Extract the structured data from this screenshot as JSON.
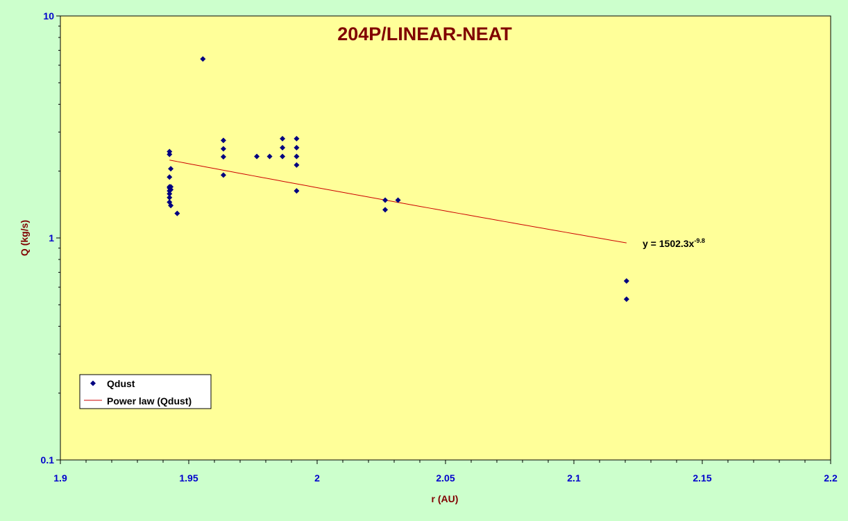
{
  "chart_data": {
    "type": "scatter",
    "title": "204P/LINEAR-NEAT",
    "xlabel": "r (AU)",
    "ylabel": "Q (kg/s)",
    "xlim": [
      1.9,
      2.2
    ],
    "ylim": [
      0.1,
      10
    ],
    "yscale": "log",
    "x_ticks": [
      "1.9",
      "1.95",
      "2",
      "2.05",
      "2.1",
      "2.15",
      "2.2"
    ],
    "y_ticks": [
      "0.1",
      "1",
      "10"
    ],
    "grid": false,
    "legend_position": "bottom-left",
    "colors": {
      "background": "#ccffcc",
      "plot_area": "#ffff99",
      "points": "#000080",
      "trendline": "#cc0000",
      "title": "#800000",
      "ticks": "#0000cc"
    },
    "series": [
      {
        "name": "Qdust",
        "marker": "diamond",
        "x": [
          1.9425,
          1.9425,
          1.9425,
          1.9425,
          1.9425,
          1.9425,
          1.9425,
          1.9425,
          1.9425,
          1.943,
          1.943,
          1.943,
          1.943,
          1.9455,
          1.9555,
          1.9635,
          1.9635,
          1.9635,
          1.9635,
          1.9765,
          1.9815,
          1.9865,
          1.9865,
          1.9865,
          1.992,
          1.992,
          1.992,
          1.992,
          1.992,
          2.0265,
          2.0265,
          2.0315,
          2.1205,
          2.1205
        ],
        "y": [
          2.45,
          2.38,
          1.88,
          1.7,
          1.68,
          1.63,
          1.58,
          1.52,
          1.45,
          2.05,
          1.7,
          1.65,
          1.4,
          1.29,
          6.4,
          2.75,
          2.52,
          2.32,
          1.92,
          2.33,
          2.33,
          2.8,
          2.55,
          2.33,
          2.8,
          2.55,
          2.33,
          2.13,
          1.63,
          1.48,
          1.34,
          1.48,
          0.64,
          0.53
        ]
      },
      {
        "name": "Power law (Qdust)",
        "type": "line",
        "equation": {
          "coefficient": 1502.3,
          "exponent": -9.8
        },
        "x_range": [
          1.9425,
          2.1205
        ]
      }
    ],
    "annotations": [
      {
        "text": "y = 1502.3x",
        "superscript": "-9.8"
      }
    ]
  }
}
